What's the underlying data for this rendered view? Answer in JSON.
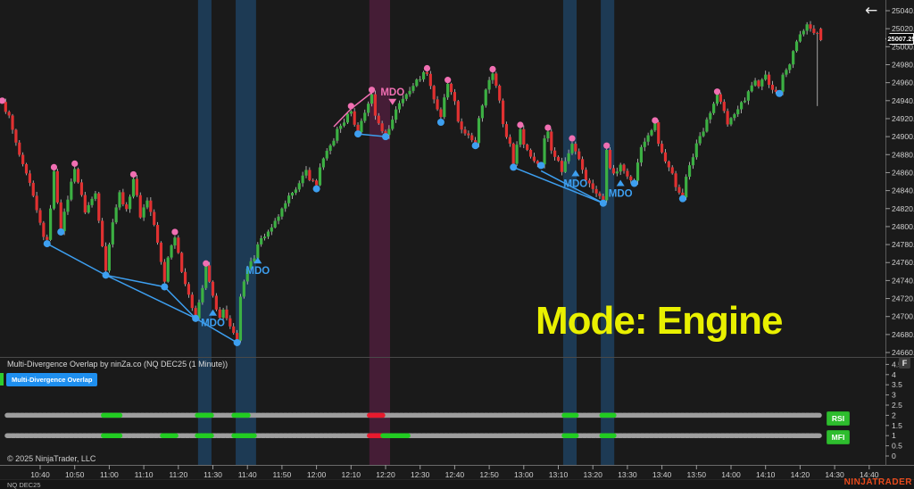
{
  "app": {
    "back_arrow_icon": "←",
    "f_button_label": "F",
    "watermark": "NINJATRADER",
    "instrument_tab": "NQ DEC25",
    "last_price": "25007.25"
  },
  "mode_banner": {
    "text": "Mode: Engine",
    "color": "#e9f000"
  },
  "panel": {
    "title": "Multi-Divergence Overlap by ninZa.co (NQ DEC25 (1 Minute))",
    "button_label": "Multi-Divergence Overlap",
    "row_labels": [
      "RSI",
      "MFI"
    ]
  },
  "footer": {
    "copyright": "© 2025 NinjaTrader, LLC"
  },
  "colors": {
    "background": "#1a1a1a",
    "candle_up": "#3cb043",
    "candle_down": "#e03131",
    "wick": "#c8c8c8",
    "swing_high_dot": "#f06fb2",
    "swing_low_dot": "#3d9ff0",
    "divergence_blue": "#3d9ff0",
    "divergence_pink": "#f06fb2",
    "band_blue": "rgba(34,108,173,0.4)",
    "band_magenta": "rgba(140,35,100,0.38)",
    "bar_gray": "#9e9e9e",
    "bar_green": "#22cc22",
    "bar_red": "#e81a2e",
    "axis_text": "#d0d0d0",
    "separator": "#4a4a4a"
  },
  "price_axis": {
    "labels": [
      "25040.00",
      "25020.00",
      "25000.00",
      "24980.00",
      "24960.00",
      "24940.00",
      "24920.00",
      "24900.00",
      "24880.00",
      "24860.00",
      "24840.00",
      "24820.00",
      "24800.00",
      "24780.00",
      "24760.00",
      "24740.00",
      "24720.00",
      "24700.00",
      "24680.00",
      "24660.00"
    ],
    "max": 25040,
    "step": 20
  },
  "indicator_axis": {
    "labels": [
      "4.5",
      "4",
      "3.5",
      "3",
      "2.5",
      "2",
      "1.5",
      "1",
      "0.5",
      "0"
    ],
    "max": 4.5,
    "step": 0.5
  },
  "time_axis": {
    "labels": [
      "10:40",
      "10:50",
      "11:00",
      "11:10",
      "11:20",
      "11:30",
      "11:40",
      "11:50",
      "12:00",
      "12:10",
      "12:20",
      "12:30",
      "12:40",
      "12:50",
      "13:00",
      "13:10",
      "13:20",
      "13:30",
      "13:40",
      "13:50",
      "14:00",
      "14:10",
      "14:20",
      "14:30",
      "14:40"
    ],
    "first_label_minute": 11,
    "minutes_per_label": 10
  },
  "chart_data": {
    "type": "candlestick",
    "instrument": "NQ DEC25 (1 Minute)",
    "minute0_time": "10:29",
    "price_path": [
      [
        0,
        24937
      ],
      [
        2,
        24922
      ],
      [
        4,
        24892
      ],
      [
        6,
        24867
      ],
      [
        8,
        24847
      ],
      [
        10,
        24817
      ],
      [
        12,
        24790
      ],
      [
        13,
        24783
      ],
      [
        14,
        24822
      ],
      [
        15,
        24860
      ],
      [
        17,
        24797
      ],
      [
        21,
        24866
      ],
      [
        24,
        24817
      ],
      [
        27,
        24837
      ],
      [
        30,
        24752
      ],
      [
        32,
        24807
      ],
      [
        34,
        24837
      ],
      [
        36,
        24817
      ],
      [
        38,
        24854
      ],
      [
        40,
        24812
      ],
      [
        42,
        24830
      ],
      [
        44,
        24802
      ],
      [
        47,
        24739
      ],
      [
        48,
        24767
      ],
      [
        50,
        24790
      ],
      [
        52,
        24752
      ],
      [
        54,
        24722
      ],
      [
        56,
        24700
      ],
      [
        58,
        24732
      ],
      [
        59,
        24755
      ],
      [
        61,
        24722
      ],
      [
        63,
        24697
      ],
      [
        64,
        24707
      ],
      [
        66,
        24687
      ],
      [
        68,
        24675
      ],
      [
        69,
        24722
      ],
      [
        71,
        24752
      ],
      [
        73,
        24767
      ],
      [
        74,
        24782
      ],
      [
        76,
        24790
      ],
      [
        78,
        24797
      ],
      [
        80,
        24812
      ],
      [
        82,
        24824
      ],
      [
        84,
        24840
      ],
      [
        86,
        24847
      ],
      [
        88,
        24862
      ],
      [
        89,
        24854
      ],
      [
        91,
        24846
      ],
      [
        92,
        24867
      ],
      [
        94,
        24882
      ],
      [
        96,
        24897
      ],
      [
        97,
        24907
      ],
      [
        99,
        24917
      ],
      [
        101,
        24930
      ],
      [
        102,
        24912
      ],
      [
        103,
        24907
      ],
      [
        105,
        24927
      ],
      [
        107,
        24948
      ],
      [
        108,
        24922
      ],
      [
        110,
        24907
      ],
      [
        111,
        24904
      ],
      [
        113,
        24917
      ],
      [
        114,
        24932
      ],
      [
        116,
        24942
      ],
      [
        118,
        24952
      ],
      [
        120,
        24962
      ],
      [
        122,
        24970
      ],
      [
        123,
        24972
      ],
      [
        125,
        24942
      ],
      [
        127,
        24920
      ],
      [
        128,
        24942
      ],
      [
        129,
        24959
      ],
      [
        131,
        24937
      ],
      [
        132,
        24917
      ],
      [
        134,
        24902
      ],
      [
        136,
        24897
      ],
      [
        137,
        24894
      ],
      [
        138,
        24922
      ],
      [
        140,
        24952
      ],
      [
        142,
        24971
      ],
      [
        144,
        24942
      ],
      [
        145,
        24912
      ],
      [
        147,
        24892
      ],
      [
        148,
        24870
      ],
      [
        149,
        24892
      ],
      [
        150,
        24909
      ],
      [
        151,
        24892
      ],
      [
        153,
        24880
      ],
      [
        154,
        24872
      ],
      [
        156,
        24870
      ],
      [
        157,
        24897
      ],
      [
        158,
        24906
      ],
      [
        159,
        24887
      ],
      [
        161,
        24872
      ],
      [
        162,
        24862
      ],
      [
        164,
        24882
      ],
      [
        165,
        24894
      ],
      [
        167,
        24877
      ],
      [
        168,
        24862
      ],
      [
        169,
        24852
      ],
      [
        171,
        24842
      ],
      [
        173,
        24834
      ],
      [
        174,
        24828
      ],
      [
        175,
        24886
      ],
      [
        176,
        24867
      ],
      [
        177,
        24857
      ],
      [
        179,
        24867
      ],
      [
        180,
        24862
      ],
      [
        182,
        24854
      ],
      [
        183,
        24850
      ],
      [
        184,
        24872
      ],
      [
        185,
        24887
      ],
      [
        187,
        24902
      ],
      [
        189,
        24914
      ],
      [
        190,
        24892
      ],
      [
        192,
        24872
      ],
      [
        194,
        24857
      ],
      [
        195,
        24842
      ],
      [
        197,
        24833
      ],
      [
        198,
        24857
      ],
      [
        200,
        24877
      ],
      [
        201,
        24892
      ],
      [
        203,
        24907
      ],
      [
        205,
        24927
      ],
      [
        207,
        24946
      ],
      [
        209,
        24927
      ],
      [
        210,
        24912
      ],
      [
        211,
        24922
      ],
      [
        213,
        24932
      ],
      [
        215,
        24942
      ],
      [
        216,
        24952
      ],
      [
        218,
        24962
      ],
      [
        219,
        24957
      ],
      [
        221,
        24967
      ],
      [
        222,
        24957
      ],
      [
        223,
        24954
      ],
      [
        225,
        24950
      ],
      [
        226,
        24967
      ],
      [
        228,
        24982
      ],
      [
        229,
        24997
      ],
      [
        231,
        25012
      ],
      [
        233,
        25025
      ],
      [
        234,
        25020
      ],
      [
        236,
        25015
      ],
      [
        237,
        25007.25
      ]
    ],
    "last_candle": {
      "minute": 237,
      "open": 25020,
      "close": 25007.25,
      "long_wick_minute": 236,
      "long_wick_low": 24934
    },
    "swing_high_markers": [
      [
        0,
        24940
      ],
      [
        15,
        24866
      ],
      [
        21,
        24870
      ],
      [
        38,
        24858
      ],
      [
        50,
        24794
      ],
      [
        59,
        24759
      ],
      [
        101,
        24934
      ],
      [
        107,
        24952
      ],
      [
        123,
        24976
      ],
      [
        129,
        24963
      ],
      [
        142,
        24975
      ],
      [
        150,
        24913
      ],
      [
        158,
        24910
      ],
      [
        165,
        24898
      ],
      [
        175,
        24890
      ],
      [
        189,
        24918
      ],
      [
        207,
        24950
      ]
    ],
    "swing_low_markers": [
      [
        13,
        24781
      ],
      [
        17,
        24794
      ],
      [
        30,
        24746
      ],
      [
        47,
        24733
      ],
      [
        56,
        24698
      ],
      [
        68,
        24671
      ],
      [
        91,
        24842
      ],
      [
        103,
        24903
      ],
      [
        111,
        24900
      ],
      [
        127,
        24916
      ],
      [
        137,
        24890
      ],
      [
        148,
        24866
      ],
      [
        156,
        24868
      ],
      [
        174,
        24826
      ],
      [
        183,
        24848
      ],
      [
        197,
        24831
      ],
      [
        225,
        24948
      ]
    ],
    "divergence_lines_blue": [
      [
        [
          13,
          24781
        ],
        [
          30,
          24746
        ],
        [
          56,
          24698
        ]
      ],
      [
        [
          30,
          24746
        ],
        [
          47,
          24733
        ],
        [
          56,
          24698
        ]
      ],
      [
        [
          56,
          24698
        ],
        [
          68,
          24671
        ]
      ],
      [
        [
          103,
          24903
        ],
        [
          111,
          24900
        ]
      ],
      [
        [
          148,
          24866
        ],
        [
          174,
          24826
        ]
      ],
      [
        [
          156,
          24862
        ],
        [
          174,
          24826
        ]
      ]
    ],
    "divergence_lines_pink": [
      [
        [
          96,
          24911
        ],
        [
          101,
          24931
        ],
        [
          107,
          24949
        ]
      ]
    ],
    "mdo_signals": [
      {
        "minute": 61,
        "price": 24704,
        "dir": "up",
        "label": "MDO"
      },
      {
        "minute": 74,
        "price": 24762,
        "dir": "up",
        "label": "MDO"
      },
      {
        "minute": 113,
        "price": 24939,
        "dir": "down",
        "label": "MDO"
      },
      {
        "minute": 166,
        "price": 24859,
        "dir": "up",
        "label": "MDO"
      },
      {
        "minute": 179,
        "price": 24848,
        "dir": "up",
        "label": "MDO"
      }
    ],
    "highlight_bands": [
      {
        "from": 56.7,
        "to": 60.6,
        "type": "blue"
      },
      {
        "from": 67.6,
        "to": 73.5,
        "type": "blue"
      },
      {
        "from": 106.3,
        "to": 112.3,
        "type": "magenta"
      },
      {
        "from": 162.4,
        "to": 166.3,
        "type": "blue"
      },
      {
        "from": 173.3,
        "to": 177.2,
        "type": "blue"
      }
    ],
    "indicator_rows": [
      {
        "label": "RSI",
        "level": 2,
        "segments": [
          {
            "from": 29.3,
            "to": 34.3,
            "color": "green"
          },
          {
            "from": 56.5,
            "to": 60.6,
            "color": "green"
          },
          {
            "from": 67.1,
            "to": 71.2,
            "color": "green"
          },
          {
            "from": 106.3,
            "to": 110.2,
            "color": "red"
          },
          {
            "from": 162.7,
            "to": 166.3,
            "color": "green"
          },
          {
            "from": 173.6,
            "to": 177.2,
            "color": "green"
          }
        ]
      },
      {
        "label": "MFI",
        "level": 1,
        "segments": [
          {
            "from": 29.3,
            "to": 34.3,
            "color": "green"
          },
          {
            "from": 46.4,
            "to": 50.3,
            "color": "green"
          },
          {
            "from": 56.5,
            "to": 60.6,
            "color": "green"
          },
          {
            "from": 67.1,
            "to": 73.0,
            "color": "green"
          },
          {
            "from": 106.3,
            "to": 110.2,
            "color": "red"
          },
          {
            "from": 110.2,
            "to": 117.5,
            "color": "green"
          },
          {
            "from": 162.7,
            "to": 166.3,
            "color": "green"
          },
          {
            "from": 173.6,
            "to": 177.2,
            "color": "green"
          }
        ]
      }
    ]
  }
}
